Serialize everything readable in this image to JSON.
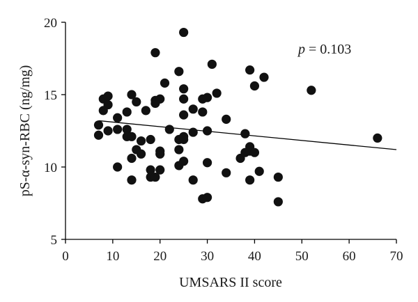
{
  "chart_data": {
    "type": "scatter",
    "xlabel": "UMSARS II score",
    "ylabel": "pS-α-syn-RBC (ng/mg)",
    "xlim": [
      0,
      70
    ],
    "ylim": [
      5,
      20
    ],
    "xticks": [
      "0",
      "10",
      "20",
      "30",
      "40",
      "50",
      "60",
      "70"
    ],
    "yticks": [
      "5",
      "10",
      "15",
      "20"
    ],
    "grid": false,
    "annotation": {
      "prefix": "p",
      "text": " = 0.103"
    },
    "trend_line": {
      "x": [
        7,
        70
      ],
      "y": [
        13.2,
        11.2
      ]
    },
    "points": [
      {
        "x": 7,
        "y": 12.9
      },
      {
        "x": 7,
        "y": 12.2
      },
      {
        "x": 8,
        "y": 14.7
      },
      {
        "x": 8,
        "y": 13.9
      },
      {
        "x": 9,
        "y": 14.9
      },
      {
        "x": 9,
        "y": 14.3
      },
      {
        "x": 9,
        "y": 12.5
      },
      {
        "x": 11,
        "y": 12.6
      },
      {
        "x": 11,
        "y": 13.4
      },
      {
        "x": 11,
        "y": 10.0
      },
      {
        "x": 13,
        "y": 13.8
      },
      {
        "x": 13,
        "y": 12.6
      },
      {
        "x": 13,
        "y": 12.1
      },
      {
        "x": 14,
        "y": 15.0
      },
      {
        "x": 14,
        "y": 12.1
      },
      {
        "x": 14,
        "y": 10.6
      },
      {
        "x": 14,
        "y": 9.1
      },
      {
        "x": 15,
        "y": 14.5
      },
      {
        "x": 15,
        "y": 11.2
      },
      {
        "x": 16,
        "y": 11.8
      },
      {
        "x": 16,
        "y": 10.9
      },
      {
        "x": 17,
        "y": 13.9
      },
      {
        "x": 18,
        "y": 11.9
      },
      {
        "x": 18,
        "y": 9.8
      },
      {
        "x": 18,
        "y": 9.3
      },
      {
        "x": 19,
        "y": 17.9
      },
      {
        "x": 19,
        "y": 14.4
      },
      {
        "x": 19,
        "y": 14.6
      },
      {
        "x": 19,
        "y": 9.3
      },
      {
        "x": 20,
        "y": 14.7
      },
      {
        "x": 20,
        "y": 11.1
      },
      {
        "x": 20,
        "y": 10.9
      },
      {
        "x": 20,
        "y": 9.8
      },
      {
        "x": 21,
        "y": 15.8
      },
      {
        "x": 22,
        "y": 12.6
      },
      {
        "x": 24,
        "y": 16.6
      },
      {
        "x": 24,
        "y": 11.9
      },
      {
        "x": 24,
        "y": 11.2
      },
      {
        "x": 24,
        "y": 10.1
      },
      {
        "x": 25,
        "y": 19.3
      },
      {
        "x": 25,
        "y": 15.4
      },
      {
        "x": 25,
        "y": 14.7
      },
      {
        "x": 25,
        "y": 13.6
      },
      {
        "x": 25,
        "y": 12.1
      },
      {
        "x": 25,
        "y": 11.9
      },
      {
        "x": 25,
        "y": 10.4
      },
      {
        "x": 27,
        "y": 14.0
      },
      {
        "x": 27,
        "y": 12.4
      },
      {
        "x": 27,
        "y": 9.1
      },
      {
        "x": 29,
        "y": 14.7
      },
      {
        "x": 29,
        "y": 13.8
      },
      {
        "x": 29,
        "y": 7.8
      },
      {
        "x": 30,
        "y": 14.8
      },
      {
        "x": 30,
        "y": 12.5
      },
      {
        "x": 30,
        "y": 10.3
      },
      {
        "x": 30,
        "y": 7.9
      },
      {
        "x": 31,
        "y": 17.1
      },
      {
        "x": 32,
        "y": 15.1
      },
      {
        "x": 34,
        "y": 13.3
      },
      {
        "x": 34,
        "y": 9.6
      },
      {
        "x": 37,
        "y": 10.6
      },
      {
        "x": 38,
        "y": 12.3
      },
      {
        "x": 38,
        "y": 11.0
      },
      {
        "x": 39,
        "y": 16.7
      },
      {
        "x": 39,
        "y": 11.4
      },
      {
        "x": 39,
        "y": 11.1
      },
      {
        "x": 39,
        "y": 9.1
      },
      {
        "x": 40,
        "y": 15.6
      },
      {
        "x": 40,
        "y": 11.0
      },
      {
        "x": 41,
        "y": 9.7
      },
      {
        "x": 42,
        "y": 16.2
      },
      {
        "x": 45,
        "y": 9.3
      },
      {
        "x": 45,
        "y": 7.6
      },
      {
        "x": 52,
        "y": 15.3
      },
      {
        "x": 66,
        "y": 12.0
      }
    ]
  }
}
